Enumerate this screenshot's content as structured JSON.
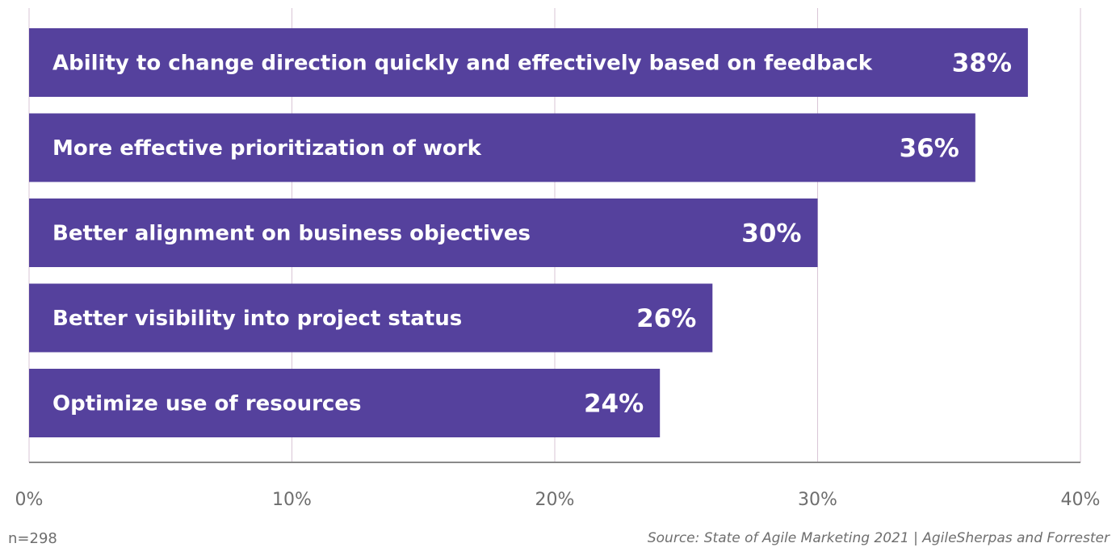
{
  "chart_data": {
    "type": "bar",
    "orientation": "horizontal",
    "categories": [
      "Ability to change direction quickly and effectively based on feedback",
      "More effective prioritization of work",
      "Better alignment on business objectives",
      "Better visibility into project status",
      "Optimize use of resources"
    ],
    "values": [
      38,
      36,
      30,
      26,
      24
    ],
    "value_labels": [
      "38%",
      "36%",
      "30%",
      "26%",
      "24%"
    ],
    "xlim": [
      0,
      40
    ],
    "x_ticks": [
      0,
      10,
      20,
      30,
      40
    ],
    "x_tick_labels": [
      "0%",
      "10%",
      "20%",
      "30%",
      "40%"
    ],
    "grid": true,
    "bar_color": "#55419d",
    "label_color": "#ffffff"
  },
  "footer": {
    "note": "n=298",
    "source": "Source: State of Agile Marketing 2021 | AgileSherpas and Forrester"
  }
}
